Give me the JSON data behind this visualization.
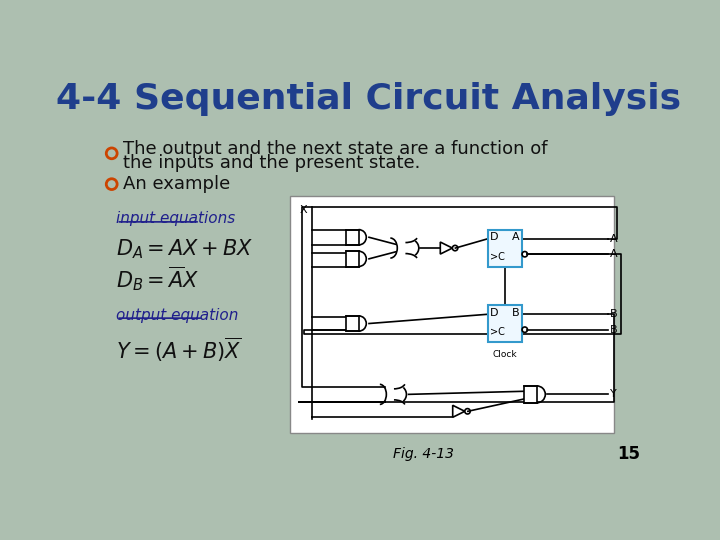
{
  "title": "4-4 Sequential Circuit Analysis",
  "title_color": "#1F3E8C",
  "bg_color": "#ADBFB0",
  "bullet_color": "#CC4400",
  "bullet1_line1": "The output and the next state are a function of",
  "bullet1_line2": "the inputs and the present state.",
  "bullet2": "An example",
  "label_input": "input equations",
  "label_output": "output equation",
  "fig_label": "Fig. 4-13",
  "page_num": "15",
  "text_color": "#000000",
  "label_color": "#1F1F8C",
  "underline_color": "#1F1F8C"
}
